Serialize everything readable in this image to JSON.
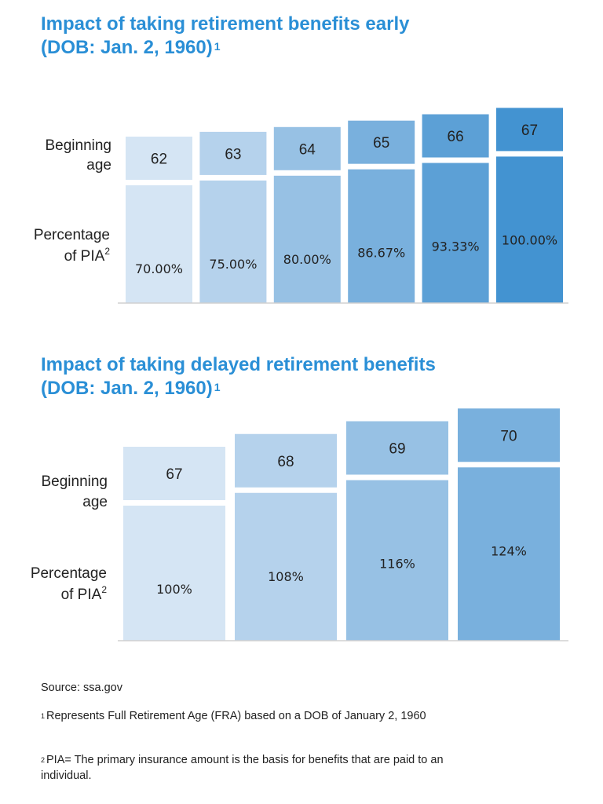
{
  "colors": {
    "title": "#2a8fd6",
    "shades": [
      "#d5e5f4",
      "#b5d2ec",
      "#97c1e4",
      "#79b0dd",
      "#5ca0d6",
      "#4393d1"
    ]
  },
  "charts": [
    {
      "title": "Impact of taking retirement benefits early",
      "title_line2": "(DOB: Jan. 2, 1960)",
      "title_sup": "1",
      "row_label_age_1": "Beginning",
      "row_label_age_2": "age",
      "row_label_pct_1": "Percentage",
      "row_label_pct_2": "of PIA",
      "row_label_pct_sup": "2"
    },
    {
      "title": "Impact of taking delayed retirement benefits",
      "title_line2": "(DOB: Jan. 2, 1960)",
      "title_sup": "1",
      "row_label_age_1": "Beginning",
      "row_label_age_2": "age",
      "row_label_pct_1": "Percentage",
      "row_label_pct_2": "of PIA",
      "row_label_pct_sup": "2"
    }
  ],
  "chart_data": [
    {
      "type": "bar",
      "title": "Impact of taking retirement benefits early (DOB: Jan. 2, 1960)",
      "categories": [
        "62",
        "63",
        "64",
        "65",
        "66",
        "67"
      ],
      "values": [
        70.0,
        75.0,
        80.0,
        86.67,
        93.33,
        100.0
      ],
      "labels": [
        "70.00%",
        "75.00%",
        "80.00%",
        "86.67%",
        "93.33%",
        "100.00%"
      ],
      "xlabel": "Beginning age",
      "ylabel": "Percentage of PIA"
    },
    {
      "type": "bar",
      "title": "Impact of taking delayed retirement benefits (DOB: Jan. 2, 1960)",
      "categories": [
        "67",
        "68",
        "69",
        "70"
      ],
      "values": [
        100,
        108,
        116,
        124
      ],
      "labels": [
        "100%",
        "108%",
        "116%",
        "124%"
      ],
      "xlabel": "Beginning age",
      "ylabel": "Percentage of PIA"
    }
  ],
  "footer": {
    "source": "Source: ssa.gov",
    "note1_sup": "1",
    "note1": "Represents Full Retirement Age (FRA) based on a DOB of January 2, 1960",
    "note2_sup": "2",
    "note2": "PIA= The primary insurance amount is the basis for benefits that are paid to an individual."
  }
}
